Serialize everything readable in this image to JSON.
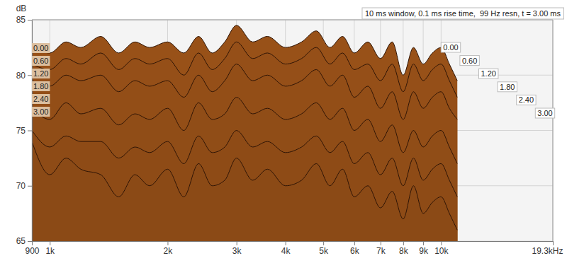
{
  "chart_data": {
    "type": "waterfall",
    "subtitle": "10 ms window, 0.1 ms rise time,  99 Hz resn, t = 3.00 ms",
    "y_label": "dB",
    "log": "x",
    "grid": true,
    "color": "#8b4a16",
    "xlim": [
      900,
      19300
    ],
    "ylim": [
      65,
      85
    ],
    "xticks": [
      900,
      {
        "value": 1000,
        "label": "1k"
      },
      {
        "value": 2000,
        "label": "2k"
      },
      {
        "value": 3000,
        "label": "3k"
      },
      {
        "value": 4000,
        "label": "4k"
      },
      {
        "value": 5000,
        "label": "5k"
      },
      {
        "value": 6000,
        "label": "6k"
      },
      {
        "value": 7000,
        "label": "7k"
      },
      {
        "value": 8000,
        "label": "8k"
      },
      {
        "value": 9000,
        "label": "9k"
      },
      {
        "value": 10000,
        "label": "10k"
      },
      {
        "value": 19300,
        "label": "19.3kHz"
      }
    ],
    "yticks": [
      65,
      70,
      75,
      80,
      85
    ],
    "x": [
      900,
      1000,
      1100,
      1200,
      1350,
      1500,
      1650,
      1800,
      2000,
      2200,
      2400,
      2600,
      2800,
      3000,
      3300,
      3600,
      4000,
      4400,
      4800,
      5200,
      5600,
      6000,
      6500,
      7000,
      7500,
      8000,
      8500,
      9000,
      9500,
      10000,
      10500,
      11000
    ],
    "series": [
      {
        "name": "0.00",
        "values": [
          82.5,
          82,
          83,
          82.5,
          83.5,
          82,
          83,
          82.5,
          83,
          82,
          83.5,
          82,
          83,
          84.5,
          83,
          83.5,
          82.5,
          83,
          84,
          82.5,
          83.5,
          82,
          83,
          81.5,
          83,
          80,
          82.5,
          81,
          82,
          82.5,
          81,
          79.5
        ]
      },
      {
        "name": "0.60",
        "values": [
          81,
          80.5,
          81.5,
          81,
          82,
          80.5,
          81.5,
          81,
          81.5,
          80,
          82,
          80.5,
          81.5,
          83,
          81.5,
          82,
          81,
          81.5,
          82.5,
          81,
          82,
          80.5,
          81,
          79.5,
          81,
          78.5,
          81,
          79.5,
          80.5,
          81,
          79.5,
          78
        ]
      },
      {
        "name": "1.20",
        "values": [
          79.5,
          79,
          80,
          79.5,
          80,
          78.5,
          79.5,
          79,
          79.5,
          78,
          80,
          78.5,
          79.5,
          81,
          79.5,
          80,
          79,
          79.5,
          80.5,
          79,
          80,
          78,
          79,
          77,
          78.5,
          76,
          78.5,
          77,
          78,
          78.5,
          77,
          76
        ]
      },
      {
        "name": "1.80",
        "values": [
          77,
          76,
          77.5,
          76.5,
          77,
          75.5,
          76.5,
          76,
          77,
          75,
          77.5,
          76,
          76.5,
          78,
          76.5,
          77,
          76,
          76.5,
          77.5,
          76,
          77,
          75,
          76,
          74,
          75.5,
          73,
          75,
          73.5,
          74.5,
          75,
          73.5,
          72
        ]
      },
      {
        "name": "2.40",
        "values": [
          75,
          73.5,
          74.5,
          74,
          74,
          72.5,
          73.5,
          73,
          74,
          72,
          74.5,
          73,
          73.5,
          75,
          73.5,
          74,
          73,
          73.5,
          74.5,
          73,
          74,
          72,
          73,
          71,
          72.5,
          70,
          72.5,
          70.5,
          71.5,
          72,
          70.5,
          69
        ]
      },
      {
        "name": "3.00",
        "values": [
          74,
          71,
          72.5,
          71.5,
          71,
          69,
          71,
          70,
          71.5,
          69,
          72,
          70,
          70.5,
          72.5,
          70.5,
          71.5,
          70,
          70.5,
          72,
          70,
          71.5,
          69,
          70,
          68,
          69.5,
          67,
          70,
          67.5,
          68.5,
          69,
          67.5,
          66
        ]
      }
    ]
  }
}
